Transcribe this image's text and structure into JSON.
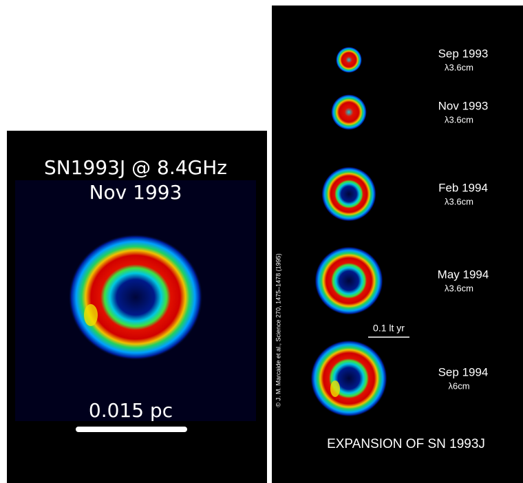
{
  "left_panel": {
    "title": "SN1993J @ 8.4GHz",
    "subtitle": "Nov 1993",
    "scale_label": "0.015 pc"
  },
  "right_panel": {
    "epochs": [
      {
        "date": "Sep 1993",
        "wavelength": "λ3.6cm"
      },
      {
        "date": "Nov 1993",
        "wavelength": "λ3.6cm"
      },
      {
        "date": "Feb 1994",
        "wavelength": "λ3.6cm"
      },
      {
        "date": "May 1994",
        "wavelength": "λ3.6cm"
      },
      {
        "date": "Sep 1994",
        "wavelength": "λ6cm"
      }
    ],
    "scale_label": "0.1 lt yr",
    "caption": "EXPANSION OF SN 1993J",
    "credit": "© J. M. Marcaide et al., Science 270, 1475–1478 (1995)"
  }
}
